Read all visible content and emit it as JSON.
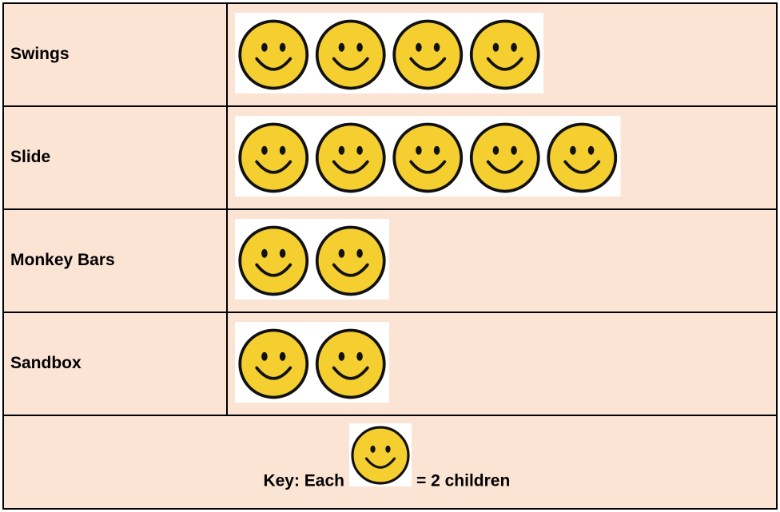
{
  "chart_data": {
    "type": "pictograph",
    "categories": [
      "Swings",
      "Slide",
      "Monkey Bars",
      "Sandbox"
    ],
    "values": [
      4,
      5,
      2,
      2
    ],
    "color": "#f4cf2f",
    "key_label": "Key: Each",
    "key_value_label": "= 2 children"
  }
}
